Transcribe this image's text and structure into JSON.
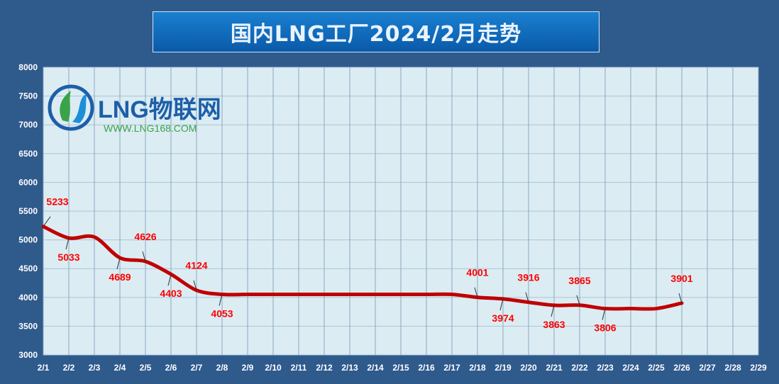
{
  "title": "国内LNG工厂2024/2月走势",
  "logo": {
    "brand": "LNG物联网",
    "url": "WWW.LNG168.COM"
  },
  "colors": {
    "background": "#2f5a8c",
    "plot_bg": "#dcecf3",
    "line": "#c00000",
    "label": "#ff0000"
  },
  "chart_data": {
    "type": "line",
    "title": "国内LNG工厂2024/2月走势",
    "xlabel": "",
    "ylabel": "",
    "categories": [
      "2/1",
      "2/2",
      "2/3",
      "2/4",
      "2/5",
      "2/6",
      "2/7",
      "2/8",
      "2/9",
      "2/10",
      "2/11",
      "2/12",
      "2/13",
      "2/14",
      "2/15",
      "2/16",
      "2/17",
      "2/18",
      "2/19",
      "2/20",
      "2/21",
      "2/22",
      "2/23",
      "2/24",
      "2/25",
      "2/26",
      "2/27",
      "2/28",
      "2/29"
    ],
    "ylim": [
      3000,
      8000
    ],
    "yticks": [
      3000,
      3500,
      4000,
      4500,
      5000,
      5500,
      6000,
      6500,
      7000,
      7500,
      8000
    ],
    "grid": true,
    "series": [
      {
        "values": [
          5233,
          5033,
          5050,
          4689,
          4626,
          4403,
          4124,
          4053,
          4053,
          4053,
          4053,
          4053,
          4053,
          4053,
          4053,
          4053,
          4053,
          4001,
          3974,
          3916,
          3863,
          3865,
          3806,
          3806,
          3806,
          3901,
          null,
          null,
          null
        ]
      }
    ],
    "annotations": [
      {
        "index": 0,
        "text": "5233",
        "pos": "above"
      },
      {
        "index": 1,
        "text": "5033",
        "pos": "below"
      },
      {
        "index": 3,
        "text": "4689",
        "pos": "below"
      },
      {
        "index": 4,
        "text": "4626",
        "pos": "above"
      },
      {
        "index": 5,
        "text": "4403",
        "pos": "below"
      },
      {
        "index": 6,
        "text": "4124",
        "pos": "above"
      },
      {
        "index": 7,
        "text": "4053",
        "pos": "below"
      },
      {
        "index": 17,
        "text": "4001",
        "pos": "above"
      },
      {
        "index": 18,
        "text": "3974",
        "pos": "below"
      },
      {
        "index": 19,
        "text": "3916",
        "pos": "above"
      },
      {
        "index": 20,
        "text": "3863",
        "pos": "below"
      },
      {
        "index": 21,
        "text": "3865",
        "pos": "above"
      },
      {
        "index": 22,
        "text": "3806",
        "pos": "below"
      },
      {
        "index": 25,
        "text": "3901",
        "pos": "above"
      }
    ]
  }
}
